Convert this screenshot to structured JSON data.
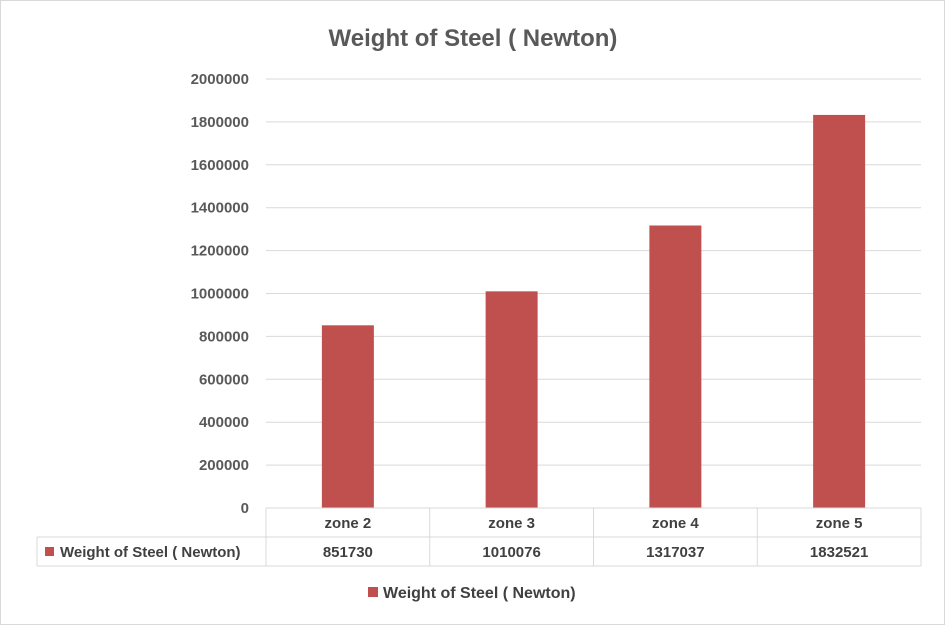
{
  "chart_data": {
    "type": "bar",
    "title": "Weight of Steel ( Newton)",
    "categories": [
      "zone 2",
      "zone 3",
      "zone 4",
      "zone 5"
    ],
    "series": [
      {
        "name": "Weight of Steel ( Newton)",
        "values": [
          851730,
          1010076,
          1317037,
          1832521
        ],
        "value_labels": [
          "851730",
          "1010076",
          "1317037",
          "1832521"
        ],
        "color": "#c0504d"
      }
    ],
    "yticks": [
      "0",
      "200000",
      "400000",
      "600000",
      "800000",
      "1000000",
      "1200000",
      "1400000",
      "1600000",
      "1800000",
      "2000000"
    ],
    "ylim": [
      0,
      2000000
    ],
    "xlabel": "",
    "ylabel": "",
    "grid": true,
    "data_table": true,
    "legend": "bottom"
  }
}
